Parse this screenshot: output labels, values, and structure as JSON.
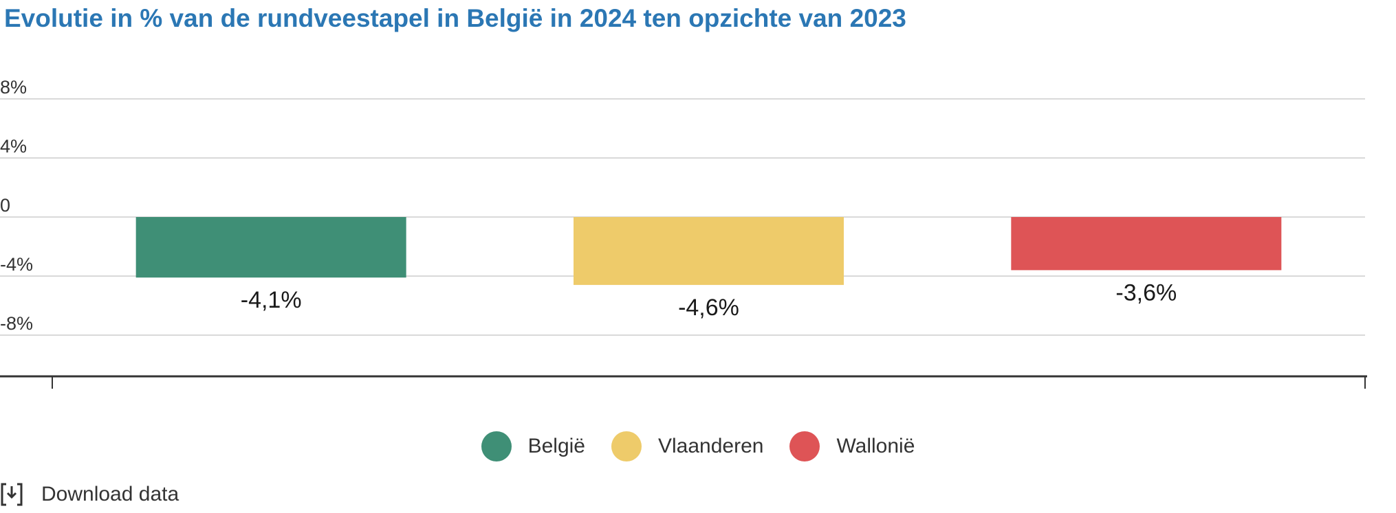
{
  "chart_data": {
    "type": "bar",
    "title": "Evolutie in % van de rundveestapel in België in 2024 ten opzichte van 2023",
    "categories": [
      "België",
      "Vlaanderen",
      "Wallonië"
    ],
    "values": [
      -4.1,
      -4.6,
      -3.6
    ],
    "data_labels": [
      "-4,1%",
      "-4,6%",
      "-3,6%"
    ],
    "colors": [
      "#3f8f76",
      "#eecb6a",
      "#de5456"
    ],
    "ylim": [
      -12,
      8
    ],
    "y_ticks": [
      8,
      4,
      0,
      -4,
      -8
    ],
    "y_tick_labels": [
      "8%",
      "4%",
      "0",
      "-4%",
      "-8%"
    ],
    "grid": true,
    "legend_position": "bottom-center"
  },
  "footer": {
    "download_label": "Download data",
    "download_icon": "download-icon"
  }
}
